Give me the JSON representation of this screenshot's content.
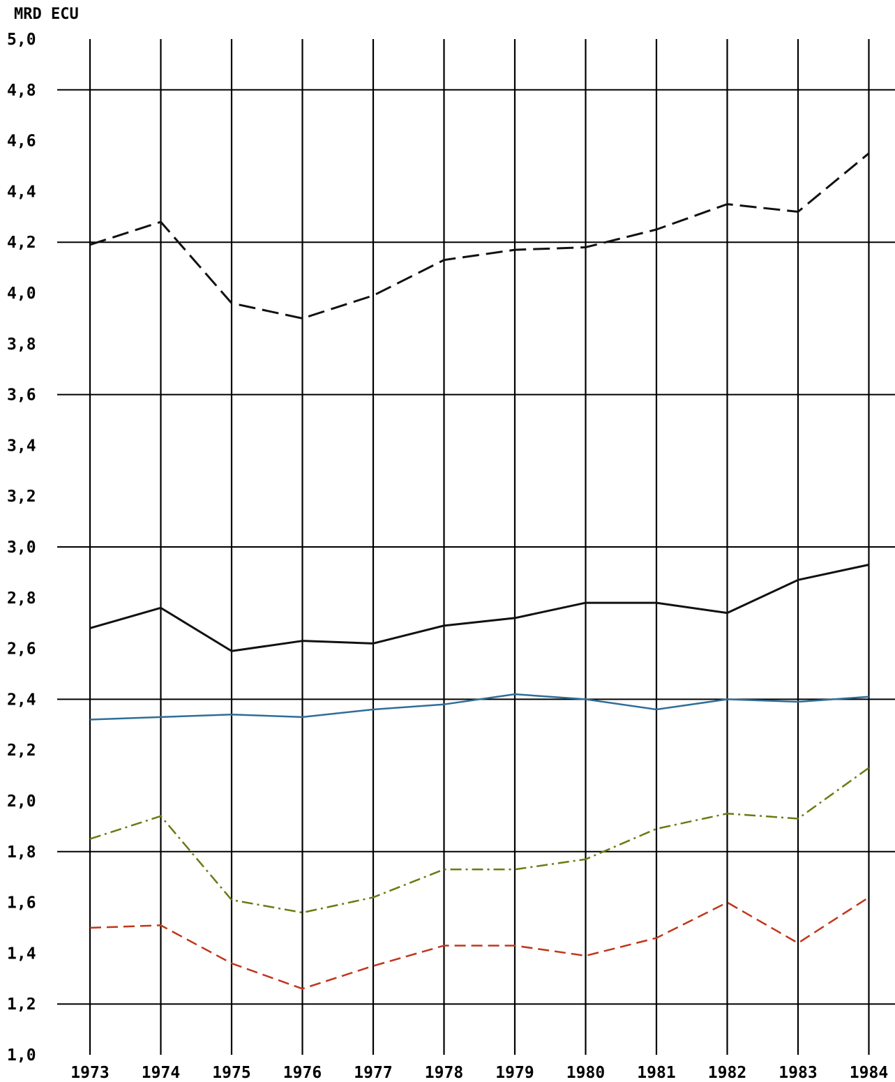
{
  "chart_data": {
    "type": "line",
    "title": "",
    "ylabel": "MRD ECU",
    "xlabel": "",
    "ylim": [
      1.0,
      5.0
    ],
    "grid": "on",
    "y_ticks": [
      "1,0",
      "1,2",
      "1,4",
      "1,6",
      "1,8",
      "2,0",
      "2,2",
      "2,4",
      "2,6",
      "2,8",
      "3,0",
      "3,2",
      "3,4",
      "3,6",
      "3,8",
      "4,0",
      "4,2",
      "4,4",
      "4,6",
      "4,8",
      "5,0"
    ],
    "categories": [
      "1973",
      "1974",
      "1975",
      "1976",
      "1977",
      "1978",
      "1979",
      "1980",
      "1981",
      "1982",
      "1983",
      "1984"
    ],
    "series": [
      {
        "color": "#111111",
        "dash": "long-dash",
        "values": [
          4.19,
          4.28,
          3.96,
          3.9,
          3.99,
          4.13,
          4.17,
          4.18,
          4.25,
          4.35,
          4.32,
          4.55
        ]
      },
      {
        "color": "#111111",
        "dash": "solid",
        "values": [
          2.68,
          2.76,
          2.59,
          2.63,
          2.62,
          2.69,
          2.72,
          2.78,
          2.78,
          2.74,
          2.87,
          2.93
        ]
      },
      {
        "color": "#2e6e98",
        "dash": "solid",
        "values": [
          2.32,
          2.33,
          2.34,
          2.33,
          2.36,
          2.38,
          2.42,
          2.4,
          2.36,
          2.4,
          2.39,
          2.41
        ]
      },
      {
        "color": "#6b7a10",
        "dash": "dash-dot",
        "values": [
          1.85,
          1.94,
          1.61,
          1.56,
          1.62,
          1.73,
          1.73,
          1.77,
          1.89,
          1.95,
          1.93,
          2.13
        ]
      },
      {
        "color": "#c0361a",
        "dash": "dashed",
        "values": [
          1.5,
          1.51,
          1.36,
          1.26,
          1.35,
          1.43,
          1.43,
          1.39,
          1.46,
          1.6,
          1.44,
          1.62
        ]
      }
    ]
  }
}
